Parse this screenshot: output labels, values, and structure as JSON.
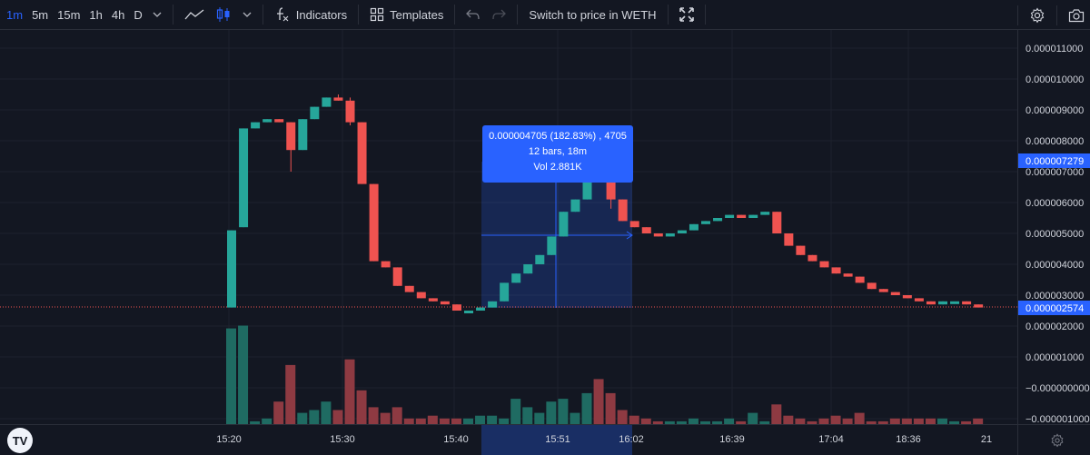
{
  "toolbar": {
    "timeframes": [
      "1m",
      "5m",
      "15m",
      "1h",
      "4h",
      "D"
    ],
    "active_timeframe": "1m",
    "indicators_label": "Indicators",
    "templates_label": "Templates",
    "switch_label": "Switch to price in WETH",
    "icons": [
      "chevron-down-icon",
      "line-chart-icon",
      "candles-icon",
      "fx-icon",
      "templates-icon",
      "undo-icon",
      "redo-icon",
      "fullscreen-icon",
      "gear-icon",
      "camera-icon"
    ]
  },
  "logo_text": "TV",
  "measure": {
    "line1": "0.000004705 (182.83%) , 4705",
    "line2": "12 bars, 18m",
    "line3": "Vol 2.881K"
  },
  "price_axis": {
    "labels": [
      "0.000011000",
      "0.000010000",
      "0.000009000",
      "0.000008000",
      "0.000007000",
      "0.000006000",
      "0.000005000",
      "0.000004000",
      "0.000003000",
      "0.000002000",
      "0.000001000",
      "−0.000000000",
      "−0.000001000"
    ],
    "current_label": "0.000007279",
    "last_label": "0.000002574"
  },
  "time_axis": {
    "labels": [
      "15:20",
      "15:30",
      "15:40",
      "15:51",
      "16:02",
      "16:39",
      "17:04",
      "18:36",
      "21"
    ]
  },
  "colors": {
    "up": "#26a69a",
    "down": "#ef5350",
    "up_vol": "#1f6b62",
    "down_vol": "#8e3a42",
    "accent": "#2962ff"
  },
  "chart_data": {
    "type": "candlestick",
    "price_scale": [
      -1e-06,
      1.1e-05
    ],
    "candles": [
      {
        "o": 2.6e-06,
        "h": 5.1e-06,
        "l": 2.6e-06,
        "c": 5.1e-06
      },
      {
        "o": 5.2e-06,
        "h": 8.4e-06,
        "l": 5.2e-06,
        "c": 8.4e-06
      },
      {
        "o": 8.4e-06,
        "h": 8.6e-06,
        "l": 8.4e-06,
        "c": 8.6e-06
      },
      {
        "o": 8.6e-06,
        "h": 8.7e-06,
        "l": 8.6e-06,
        "c": 8.7e-06
      },
      {
        "o": 8.7e-06,
        "h": 8.7e-06,
        "l": 8.6e-06,
        "c": 8.6e-06
      },
      {
        "o": 8.6e-06,
        "h": 8.6e-06,
        "l": 7e-06,
        "c": 7.7e-06
      },
      {
        "o": 7.7e-06,
        "h": 8.7e-06,
        "l": 7.7e-06,
        "c": 8.7e-06
      },
      {
        "o": 8.7e-06,
        "h": 9.1e-06,
        "l": 8.7e-06,
        "c": 9.1e-06
      },
      {
        "o": 9.1e-06,
        "h": 9.4e-06,
        "l": 9.1e-06,
        "c": 9.4e-06
      },
      {
        "o": 9.4e-06,
        "h": 9.5e-06,
        "l": 9.3e-06,
        "c": 9.3e-06
      },
      {
        "o": 9.3e-06,
        "h": 9.4e-06,
        "l": 8.5e-06,
        "c": 8.6e-06
      },
      {
        "o": 8.6e-06,
        "h": 8.6e-06,
        "l": 6.6e-06,
        "c": 6.6e-06
      },
      {
        "o": 6.6e-06,
        "h": 6.6e-06,
        "l": 4.1e-06,
        "c": 4.1e-06
      },
      {
        "o": 4.1e-06,
        "h": 4.1e-06,
        "l": 3.9e-06,
        "c": 3.9e-06
      },
      {
        "o": 3.9e-06,
        "h": 3.9e-06,
        "l": 3.3e-06,
        "c": 3.3e-06
      },
      {
        "o": 3.3e-06,
        "h": 3.3e-06,
        "l": 3.1e-06,
        "c": 3.1e-06
      },
      {
        "o": 3.1e-06,
        "h": 3.1e-06,
        "l": 2.9e-06,
        "c": 2.9e-06
      },
      {
        "o": 2.9e-06,
        "h": 2.9e-06,
        "l": 2.8e-06,
        "c": 2.8e-06
      },
      {
        "o": 2.8e-06,
        "h": 2.8e-06,
        "l": 2.7e-06,
        "c": 2.7e-06
      },
      {
        "o": 2.7e-06,
        "h": 2.7e-06,
        "l": 2.5e-06,
        "c": 2.5e-06
      },
      {
        "o": 2.5e-06,
        "h": 2.5e-06,
        "l": 2.5e-06,
        "c": 2.5e-06
      },
      {
        "o": 2.5e-06,
        "h": 2.6e-06,
        "l": 2.5e-06,
        "c": 2.6e-06
      },
      {
        "o": 2.6e-06,
        "h": 2.8e-06,
        "l": 2.6e-06,
        "c": 2.8e-06
      },
      {
        "o": 2.8e-06,
        "h": 3.4e-06,
        "l": 2.8e-06,
        "c": 3.4e-06
      },
      {
        "o": 3.4e-06,
        "h": 3.7e-06,
        "l": 3.4e-06,
        "c": 3.7e-06
      },
      {
        "o": 3.7e-06,
        "h": 4e-06,
        "l": 3.7e-06,
        "c": 4e-06
      },
      {
        "o": 4e-06,
        "h": 4.3e-06,
        "l": 4e-06,
        "c": 4.3e-06
      },
      {
        "o": 4.3e-06,
        "h": 4.9e-06,
        "l": 4.3e-06,
        "c": 4.9e-06
      },
      {
        "o": 4.9e-06,
        "h": 5.7e-06,
        "l": 4.9e-06,
        "c": 5.7e-06
      },
      {
        "o": 5.7e-06,
        "h": 6.1e-06,
        "l": 5.7e-06,
        "c": 6.1e-06
      },
      {
        "o": 6.1e-06,
        "h": 7.3e-06,
        "l": 6.1e-06,
        "c": 7.3e-06
      },
      {
        "o": 7.3e-06,
        "h": 7.3e-06,
        "l": 6.9e-06,
        "c": 6.9e-06
      },
      {
        "o": 6.9e-06,
        "h": 6.9e-06,
        "l": 5.8e-06,
        "c": 6.1e-06
      },
      {
        "o": 6.1e-06,
        "h": 6.1e-06,
        "l": 5.4e-06,
        "c": 5.4e-06
      },
      {
        "o": 5.4e-06,
        "h": 5.4e-06,
        "l": 5.2e-06,
        "c": 5.2e-06
      },
      {
        "o": 5.2e-06,
        "h": 5.2e-06,
        "l": 5e-06,
        "c": 5e-06
      },
      {
        "o": 5e-06,
        "h": 5e-06,
        "l": 4.9e-06,
        "c": 4.9e-06
      },
      {
        "o": 4.9e-06,
        "h": 5e-06,
        "l": 4.9e-06,
        "c": 5e-06
      },
      {
        "o": 5e-06,
        "h": 5.1e-06,
        "l": 5e-06,
        "c": 5.1e-06
      },
      {
        "o": 5.1e-06,
        "h": 5.3e-06,
        "l": 5.1e-06,
        "c": 5.3e-06
      },
      {
        "o": 5.3e-06,
        "h": 5.4e-06,
        "l": 5.3e-06,
        "c": 5.4e-06
      },
      {
        "o": 5.4e-06,
        "h": 5.5e-06,
        "l": 5.4e-06,
        "c": 5.5e-06
      },
      {
        "o": 5.5e-06,
        "h": 5.6e-06,
        "l": 5.5e-06,
        "c": 5.6e-06
      },
      {
        "o": 5.6e-06,
        "h": 5.6e-06,
        "l": 5.5e-06,
        "c": 5.5e-06
      },
      {
        "o": 5.5e-06,
        "h": 5.6e-06,
        "l": 5.5e-06,
        "c": 5.6e-06
      },
      {
        "o": 5.6e-06,
        "h": 5.7e-06,
        "l": 5.6e-06,
        "c": 5.7e-06
      },
      {
        "o": 5.7e-06,
        "h": 5.7e-06,
        "l": 5e-06,
        "c": 5e-06
      },
      {
        "o": 5e-06,
        "h": 5e-06,
        "l": 4.6e-06,
        "c": 4.6e-06
      },
      {
        "o": 4.6e-06,
        "h": 4.6e-06,
        "l": 4.3e-06,
        "c": 4.3e-06
      },
      {
        "o": 4.3e-06,
        "h": 4.3e-06,
        "l": 4.1e-06,
        "c": 4.1e-06
      },
      {
        "o": 4.1e-06,
        "h": 4.1e-06,
        "l": 3.9e-06,
        "c": 3.9e-06
      },
      {
        "o": 3.9e-06,
        "h": 3.9e-06,
        "l": 3.7e-06,
        "c": 3.7e-06
      },
      {
        "o": 3.7e-06,
        "h": 3.7e-06,
        "l": 3.6e-06,
        "c": 3.6e-06
      },
      {
        "o": 3.6e-06,
        "h": 3.6e-06,
        "l": 3.4e-06,
        "c": 3.4e-06
      },
      {
        "o": 3.4e-06,
        "h": 3.4e-06,
        "l": 3.2e-06,
        "c": 3.2e-06
      },
      {
        "o": 3.2e-06,
        "h": 3.2e-06,
        "l": 3.1e-06,
        "c": 3.1e-06
      },
      {
        "o": 3.1e-06,
        "h": 3.1e-06,
        "l": 3e-06,
        "c": 3e-06
      },
      {
        "o": 3e-06,
        "h": 3e-06,
        "l": 2.9e-06,
        "c": 2.9e-06
      },
      {
        "o": 2.9e-06,
        "h": 2.9e-06,
        "l": 2.8e-06,
        "c": 2.8e-06
      },
      {
        "o": 2.8e-06,
        "h": 2.8e-06,
        "l": 2.7e-06,
        "c": 2.7e-06
      },
      {
        "o": 2.7e-06,
        "h": 2.8e-06,
        "l": 2.7e-06,
        "c": 2.8e-06
      },
      {
        "o": 2.8e-06,
        "h": 2.8e-06,
        "l": 2.8e-06,
        "c": 2.8e-06
      },
      {
        "o": 2.8e-06,
        "h": 2.8e-06,
        "l": 2.7e-06,
        "c": 2.7e-06
      },
      {
        "o": 2.7e-06,
        "h": 2.7e-06,
        "l": 2.6e-06,
        "c": 2.6e-06
      }
    ],
    "volume": [
      3.4,
      3.5,
      0.1,
      0.2,
      0.8,
      2.1,
      0.4,
      0.5,
      0.8,
      0.5,
      2.3,
      1.2,
      0.6,
      0.4,
      0.6,
      0.2,
      0.2,
      0.3,
      0.2,
      0.2,
      0.2,
      0.3,
      0.3,
      0.2,
      0.9,
      0.6,
      0.4,
      0.8,
      0.9,
      0.4,
      1.1,
      1.6,
      1.1,
      0.5,
      0.3,
      0.2,
      0.1,
      0.1,
      0.1,
      0.2,
      0.1,
      0.1,
      0.2,
      0.1,
      0.4,
      0.1,
      0.7,
      0.3,
      0.2,
      0.1,
      0.2,
      0.3,
      0.2,
      0.4,
      0.1,
      0.1,
      0.2,
      0.2,
      0.2,
      0.2,
      0.2,
      0.1,
      0.1,
      0.2
    ]
  }
}
